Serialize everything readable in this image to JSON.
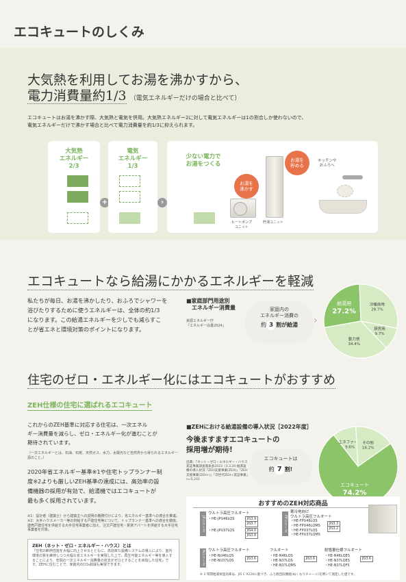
{
  "header": {
    "title": "エコキュートのしくみ"
  },
  "section1": {
    "heading_line1": "大気熱を利用してお湯を沸かすから、",
    "heading_line2": "電力消費量約1/3",
    "heading_note": "（電気エネルギーだけの場合と比べて）",
    "body": [
      "エコキュートはお湯を沸かす際、大気熱と電気を併用。大気熱エネルギー2に対して電気エネルギーは1の割合しか使わないので、",
      "電気エネルギーだけで沸かす場合と比べて電力消費量を約1/3に抑えられます。"
    ],
    "diagram": {
      "air_label": "大気熱\nエネルギー\n2/3",
      "elec_label": "電気\nエネルギー\n1/3",
      "plus": "+",
      "arrow": "›",
      "less_power": "少ない電力で\nお湯をつくる",
      "boil_bubble": "お湯を\n沸かす",
      "store_bubble": "お湯を\n貯める",
      "to_kitchen": "キッチンや\nおふろへ",
      "heatpump_label": "ヒートポンプ\nユニット",
      "tank_label": "貯湯ユニット"
    }
  },
  "section2": {
    "heading": "エコキュートなら給湯にかかるエネルギーを軽減",
    "body": [
      "私たちが毎日、お湯を沸かしたり、おふろでシャワーを",
      "浴びたりするために使うエネルギーは、全体の約1/3",
      "になります。この給湯エネルギーを少しでも減らすこ",
      "とが省エネと環境対策のポイントになります。"
    ],
    "chart_title": "■家庭部門用途別\n　エネルギー消費量",
    "source": "資源エネルギー庁\n「エネルギー白書2024」",
    "callout_line1": "家庭内の\nエネルギー消費の",
    "callout_pre": "約",
    "callout_num": "3",
    "callout_post": "割が給湯",
    "arrow_glyph": "›"
  },
  "section3": {
    "heading": "住宅のゼロ・エネルギー化にはエコキュートがおすすめ",
    "subheading": "ZEH仕様の住宅に選ばれるエコキュート",
    "body1": [
      "これからのZEH基準に対応する住宅は、一次エネル",
      "ギー消費量を減らし、ゼロ・エネルギー化が進むことが",
      "期待されています。"
    ],
    "note1": "（一次エネルギーとは、石油、石炭、天然ガス、水力、太陽光など自然界から得られるエネルギー源のこと。）",
    "body2": [
      "2020年省エネルギー基準※1や住宅トップランナー制",
      "度※2よりも厳しいZEH基準の達成には、高効率の設",
      "備機器の採用が有効で、給湯機ではエコキュートが",
      "最も多く採用されています。"
    ],
    "footnote1": "※1：設計者（建築士）から建築主への説明の義務付けにより、省エネルギー基準への適合を推進。　※2：大手ハウスメーカー等の供給する戸建住宅等について、トップランナー基準への適合を徹底。建売戸建住宅を供給する大手住宅事業者に加え、注文戸建住宅・賃貸アパートを供給する大手住宅事業者を対象。",
    "zeh_box_title": "ZEH（ネット・ゼロ・エネルギー・ハウス）とは",
    "zeh_box_body": "「住宅の断熱性能を大幅に向上させるとともに、高効率な設備システムの導入により、室内環境の質を維持しつつ大幅な省エネルギーを実現した上で、再生可能エネルギー等を導入することにより、年間の一次エネルギー消費量の収支がゼロとすることを目指した住宅」です。ZEHに住むことで、家庭内のCO₂削減も実現できます。",
    "chart_title": "■ZEHにおける給湯設備の導入状況［2022年度］",
    "chart_source": "出典：「ネット・ゼロ・エネルギー・ハウス実証事業調査発表会2023（3.3.20.給湯設備の導入状況「ZEH支援事業(ZEH)」「ZEH支援事業(ZEH+)」「次世代ZEH+実証事業」n=5,241",
    "promo_line1": "今後ますますエコキュートの",
    "promo_line2": "採用増が期待!",
    "ecocute_callout_line1": "エコキュートは",
    "ecocute_callout_pre": "約",
    "ecocute_callout_num": "7",
    "ecocute_callout_post": "割!",
    "products": {
      "title": "おすすめのZEH対応商品",
      "jp_series": "JPシリーズ",
      "fp_series": "FPシリーズ",
      "n_series": "Nシリーズ",
      "jp_head": "ウルトラ高圧フルオート",
      "jp_model1": "・HE-JPU46LQS",
      "jp_jis1a": "JIS3.9",
      "jp_jis1b": "JIS3.7",
      "jp_model2": "・HE-JPU37LQS",
      "jp_jis2a": "JIS4.0",
      "jp_jis2b": "JIS3.8",
      "fp_head": "寒冷地向け\nウルトラ高圧フルオート",
      "fp_models": "・HE-FPU46LQS\n・HE-FPU46LQMS\n・HE-FPU37LQS\n・HE-FPU37LQMS",
      "fp_jis_a": "JIS3.3",
      "fp_jis_b": "JIS3.2",
      "n1_head": "ウルトラ高圧フルオート",
      "n1_models": "・HE-NU46LQS\n・HE-NU37LQS",
      "n1_jis": "JIS3.6",
      "n2_head": "フルオート",
      "n2_models": "・HE-N46LQS\n・HE-N37LQS\n・HE-N37LQMS",
      "n2_jis": "JIS3.6",
      "n3_head": "耐塩害仕様フルオート",
      "n3_models": "・HE-N46LQES\n・HE-N37LQES\n・HE-N37LQFS",
      "n3_jis": "JIS3.6",
      "footnote": "※ 3 年間給湯保温効率は、JIS C 9220に基づき、ふろ熱回収機能(ぬくもりチャージ)を用いて測定した値です。"
    }
  },
  "colors": {
    "green": "#7ab55c",
    "orange": "#e8734a",
    "pie_green": "#8cc46a",
    "pie_light": "#d6eac4"
  },
  "chart_data": [
    {
      "type": "pie",
      "title": "家庭部門用途別エネルギー消費量",
      "slices": [
        {
          "label": "給湯用",
          "value": 27.2
        },
        {
          "label": "冷暖房用",
          "value": 28.7
        },
        {
          "label": "厨房用",
          "value": 9.7
        },
        {
          "label": "動力他",
          "value": 34.4
        }
      ],
      "unit": "%"
    },
    {
      "type": "pie",
      "title": "ZEHにおける給湯設備の導入状況［2022年度］",
      "slices": [
        {
          "label": "エコキュート",
          "value": 74.2
        },
        {
          "label": "エネファーム",
          "value": 9.6
        },
        {
          "label": "その他",
          "value": 16.2
        }
      ],
      "unit": "%"
    }
  ]
}
